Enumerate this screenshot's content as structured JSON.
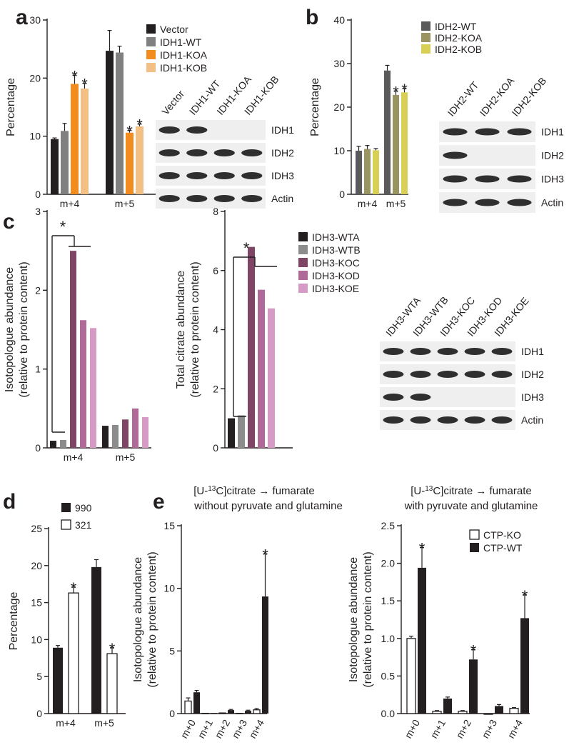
{
  "panel_labels": [
    "a",
    "b",
    "c",
    "d",
    "e"
  ],
  "colors": {
    "vector": "#231f20",
    "idh1_wt": "#808080",
    "idh1_koa": "#f28c1e",
    "idh1_kob": "#f2bf85",
    "idh2_wt": "#5a5a5a",
    "idh2_koa": "#9a9462",
    "idh2_kob": "#d8cf55",
    "idh3_wta": "#231f20",
    "idh3_wtb": "#8c8c8c",
    "idh3_koc": "#7f4565",
    "idh3_kod": "#b06a98",
    "idh3_koe": "#d69ac6",
    "black": "#231f20",
    "white": "#ffffff"
  },
  "chart_data": [
    {
      "id": "a",
      "type": "bar",
      "title": "",
      "ylabel": "Percentage",
      "xlabel": "",
      "categories": [
        "m+4",
        "m+5"
      ],
      "ylim": [
        0,
        30
      ],
      "yticks": [
        "0",
        "10",
        "20",
        "30"
      ],
      "series": [
        {
          "name": "Vector",
          "color": "#231f20",
          "values": [
            9.5,
            24.7
          ],
          "errors": [
            0.2,
            3.5
          ]
        },
        {
          "name": "IDH1-WT",
          "color": "#808080",
          "values": [
            10.9,
            24.4
          ],
          "errors": [
            1.3,
            1.1
          ]
        },
        {
          "name": "IDH1-KOA",
          "color": "#f28c1e",
          "values": [
            19.0,
            10.6
          ],
          "errors": [
            1.5,
            0.4
          ],
          "significant": [
            true,
            true
          ]
        },
        {
          "name": "IDH1-KOB",
          "color": "#f2bf85",
          "values": [
            18.2,
            11.7
          ],
          "errors": [
            0.9,
            0.4
          ],
          "significant": [
            true,
            true
          ]
        }
      ],
      "legend": "top-right",
      "blot": {
        "lanes": [
          "Vector",
          "IDH1-WT",
          "IDH1-KOA",
          "IDH1-KOB"
        ],
        "rows": [
          {
            "label": "IDH1",
            "present": [
              true,
              true,
              false,
              false
            ]
          },
          {
            "label": "IDH2",
            "present": [
              true,
              true,
              true,
              true
            ]
          },
          {
            "label": "IDH3",
            "present": [
              true,
              true,
              true,
              true
            ]
          },
          {
            "label": "Actin",
            "present": [
              true,
              true,
              true,
              true
            ]
          }
        ]
      }
    },
    {
      "id": "b",
      "type": "bar",
      "title": "",
      "ylabel": "Percentage",
      "xlabel": "",
      "categories": [
        "m+4",
        "m+5"
      ],
      "ylim": [
        0,
        40
      ],
      "yticks": [
        "0",
        "10",
        "20",
        "30",
        "40"
      ],
      "series": [
        {
          "name": "IDH2-WT",
          "color": "#5a5a5a",
          "values": [
            10.0,
            28.4
          ],
          "errors": [
            1.0,
            1.2
          ]
        },
        {
          "name": "IDH2-KOA",
          "color": "#9a9462",
          "values": [
            10.4,
            22.8
          ],
          "errors": [
            0.8,
            0.9
          ],
          "significant": [
            false,
            true
          ]
        },
        {
          "name": "IDH2-KOB",
          "color": "#d8cf55",
          "values": [
            10.1,
            23.4
          ],
          "errors": [
            0.4,
            0.9
          ],
          "significant": [
            false,
            true
          ]
        }
      ],
      "legend": "top-right",
      "blot": {
        "lanes": [
          "IDH2-WT",
          "IDH2-KOA",
          "IDH2-KOB"
        ],
        "rows": [
          {
            "label": "IDH1",
            "present": [
              true,
              true,
              true
            ]
          },
          {
            "label": "IDH2",
            "present": [
              true,
              false,
              false
            ]
          },
          {
            "label": "IDH3",
            "present": [
              true,
              true,
              true
            ]
          },
          {
            "label": "Actin",
            "present": [
              true,
              true,
              true
            ]
          }
        ]
      }
    },
    {
      "id": "c1",
      "type": "bar",
      "title": "",
      "ylabel": "Isotopologue abundance",
      "ylabel2": "(relative to protein content)",
      "categories": [
        "m+4",
        "m+5"
      ],
      "ylim": [
        0,
        3
      ],
      "yticks": [
        "0",
        "1",
        "2",
        "3"
      ],
      "series": [
        {
          "name": "IDH3-WTA",
          "color": "#231f20",
          "values": [
            0.09,
            0.28
          ]
        },
        {
          "name": "IDH3-WTB",
          "color": "#8c8c8c",
          "values": [
            0.1,
            0.29
          ]
        },
        {
          "name": "IDH3-KOC",
          "color": "#7f4565",
          "values": [
            2.5,
            0.36
          ]
        },
        {
          "name": "IDH3-KOD",
          "color": "#b06a98",
          "values": [
            1.62,
            0.5
          ]
        },
        {
          "name": "IDH3-KOE",
          "color": "#d69ac6",
          "values": [
            1.52,
            0.39
          ]
        }
      ]
    },
    {
      "id": "c2",
      "type": "bar",
      "title": "",
      "ylabel": "Total citrate abundance",
      "ylabel2": "(relative to protein content)",
      "categories": [
        ""
      ],
      "ylim": [
        0,
        8
      ],
      "yticks": [
        "0",
        "2",
        "4",
        "6",
        "8"
      ],
      "series": [
        {
          "name": "IDH3-WTA",
          "color": "#231f20",
          "values": [
            1.0
          ]
        },
        {
          "name": "IDH3-WTB",
          "color": "#8c8c8c",
          "values": [
            1.1
          ]
        },
        {
          "name": "IDH3-KOC",
          "color": "#7f4565",
          "values": [
            6.8
          ]
        },
        {
          "name": "IDH3-KOD",
          "color": "#b06a98",
          "values": [
            5.35
          ]
        },
        {
          "name": "IDH3-KOE",
          "color": "#d69ac6",
          "values": [
            4.72
          ]
        }
      ],
      "legend": "top-right",
      "blot": {
        "lanes": [
          "IDH3-WTA",
          "IDH3-WTB",
          "IDH3-KOC",
          "IDH3-KOD",
          "IDH3-KOE"
        ],
        "rows": [
          {
            "label": "IDH1",
            "present": [
              true,
              true,
              true,
              true,
              true
            ]
          },
          {
            "label": "IDH2",
            "present": [
              true,
              true,
              true,
              true,
              true
            ]
          },
          {
            "label": "IDH3",
            "present": [
              true,
              true,
              false,
              false,
              false
            ]
          },
          {
            "label": "Actin",
            "present": [
              true,
              true,
              true,
              true,
              true
            ]
          }
        ]
      }
    },
    {
      "id": "d",
      "type": "bar",
      "title": "",
      "ylabel": "Percentage",
      "categories": [
        "m+4",
        "m+5"
      ],
      "ylim": [
        0,
        25
      ],
      "yticks": [
        "0",
        "5",
        "10",
        "15",
        "20",
        "25"
      ],
      "series": [
        {
          "name": "990",
          "color": "#231f20",
          "values": [
            8.9,
            19.8
          ],
          "errors": [
            0.3,
            1.0
          ]
        },
        {
          "name": "321",
          "color": "#ffffff",
          "values": [
            16.3,
            8.1
          ],
          "errors": [
            0.8,
            0.8
          ],
          "significant": [
            true,
            true
          ]
        }
      ],
      "legend": "top-left"
    },
    {
      "id": "e1",
      "type": "bar",
      "title_pre": "[U-",
      "title_sup": "13",
      "title_post": "C]citrate → fumarate",
      "title_line2": "without pyruvate and glutamine",
      "ylabel": "Isotopologue abundance",
      "ylabel2": "(relative to protein content)",
      "categories": [
        "m+0",
        "m+1",
        "m+2",
        "m+3",
        "m+4"
      ],
      "ylim": [
        0,
        15
      ],
      "yticks": [
        "0",
        "5",
        "10",
        "15"
      ],
      "series": [
        {
          "name": "CTP-KO",
          "color": "#ffffff",
          "values": [
            1.0,
            0.02,
            0.05,
            0.02,
            0.3
          ],
          "errors": [
            0.25,
            0.0,
            0.0,
            0.0,
            0.1
          ]
        },
        {
          "name": "CTP-WT",
          "color": "#231f20",
          "values": [
            1.7,
            0.05,
            0.28,
            0.22,
            9.35
          ],
          "errors": [
            0.15,
            0.0,
            0.05,
            0.05,
            3.4
          ],
          "significant": [
            false,
            false,
            false,
            false,
            true
          ]
        }
      ]
    },
    {
      "id": "e2",
      "type": "bar",
      "title_pre": "[U-",
      "title_sup": "13",
      "title_post": "C]citrate → fumarate",
      "title_line2": "with pyruvate and glutamine",
      "ylabel": "Isotopologue abundance",
      "ylabel2": "(relative to protein content)",
      "categories": [
        "m+0",
        "m+1",
        "m+2",
        "m+3",
        "m+4"
      ],
      "ylim": [
        0,
        2.5
      ],
      "yticks": [
        "0.0",
        "0.5",
        "1.0",
        "1.5",
        "2.0",
        "2.5"
      ],
      "series": [
        {
          "name": "CTP-KO",
          "color": "#ffffff",
          "values": [
            1.0,
            0.03,
            0.03,
            -0.01,
            0.07
          ],
          "errors": [
            0.03,
            0.01,
            0.01,
            0.0,
            0.01
          ]
        },
        {
          "name": "CTP-WT",
          "color": "#231f20",
          "values": [
            1.94,
            0.2,
            0.72,
            0.1,
            1.27
          ],
          "errors": [
            0.27,
            0.02,
            0.13,
            0.02,
            0.31
          ],
          "significant": [
            true,
            false,
            true,
            false,
            true
          ]
        }
      ],
      "legend": "top-right"
    }
  ],
  "star_symbol": "*"
}
